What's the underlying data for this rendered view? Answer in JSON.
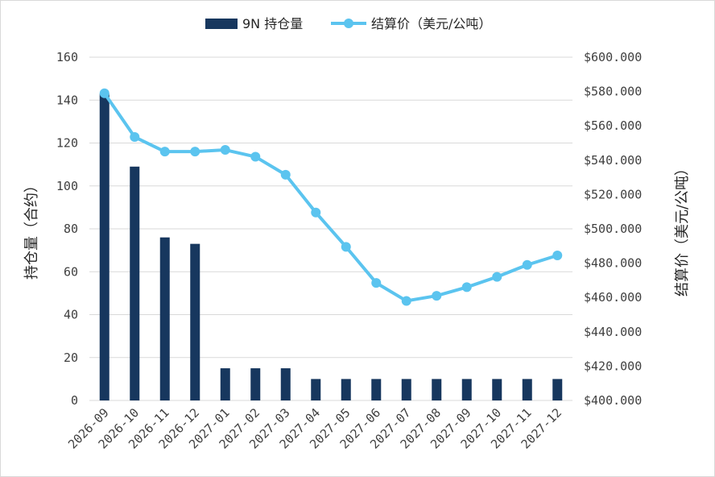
{
  "chart_data": {
    "type": "bar+line",
    "categories": [
      "2026-09",
      "2026-10",
      "2026-11",
      "2026-12",
      "2027-01",
      "2027-02",
      "2027-03",
      "2027-04",
      "2027-05",
      "2027-06",
      "2027-07",
      "2027-08",
      "2027-09",
      "2027-10",
      "2027-11",
      "2027-12"
    ],
    "series": [
      {
        "name": "9N 持仓量",
        "type": "bar",
        "axis": "left",
        "color": "#17375e",
        "values": [
          143,
          109,
          76,
          73,
          15,
          15,
          15,
          10,
          10,
          10,
          10,
          10,
          10,
          10,
          10,
          10
        ]
      },
      {
        "name": "结算价（美元/公吨）",
        "type": "line",
        "axis": "right",
        "color": "#5bc4ef",
        "values": [
          579,
          553.5,
          545,
          545,
          546,
          542,
          531.5,
          509.5,
          489.5,
          468.5,
          458,
          461,
          466,
          472,
          479,
          484.5
        ]
      }
    ],
    "y_left": {
      "label": "持仓量（合约）",
      "min": 0,
      "max": 160,
      "ticks": [
        "0",
        "20",
        "40",
        "60",
        "80",
        "100",
        "120",
        "140",
        "160"
      ]
    },
    "y_right": {
      "label": "结算价（美元/公吨）",
      "min": 400,
      "max": 600,
      "ticks": [
        "$400.000",
        "$420.000",
        "$440.000",
        "$460.000",
        "$480.000",
        "$500.000",
        "$520.000",
        "$540.000",
        "$560.000",
        "$580.000",
        "$600.000"
      ]
    },
    "grid": true,
    "legend_position": "top"
  }
}
